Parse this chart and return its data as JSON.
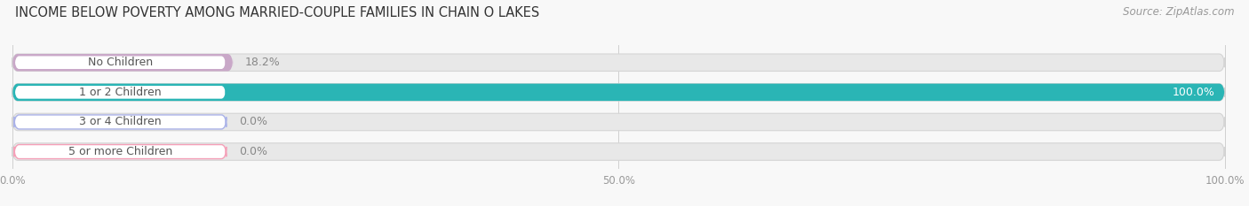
{
  "title": "INCOME BELOW POVERTY AMONG MARRIED-COUPLE FAMILIES IN CHAIN O LAKES",
  "source": "Source: ZipAtlas.com",
  "categories": [
    "No Children",
    "1 or 2 Children",
    "3 or 4 Children",
    "5 or more Children"
  ],
  "values": [
    18.2,
    100.0,
    0.0,
    0.0
  ],
  "bar_colors": [
    "#c9a8c8",
    "#2ab5b5",
    "#aab2e8",
    "#f5a0b8"
  ],
  "bar_bg_color": "#e8e8e8",
  "bar_border_color": "#d5d5d5",
  "xlim": [
    0,
    100
  ],
  "xticks": [
    0,
    50,
    100
  ],
  "xtick_labels": [
    "0.0%",
    "50.0%",
    "100.0%"
  ],
  "title_fontsize": 10.5,
  "source_fontsize": 8.5,
  "bar_label_fontsize": 9,
  "value_fontsize": 9,
  "tick_fontsize": 8.5,
  "figsize": [
    14.06,
    2.33
  ],
  "dpi": 100,
  "bg_color": "#f8f8f8"
}
